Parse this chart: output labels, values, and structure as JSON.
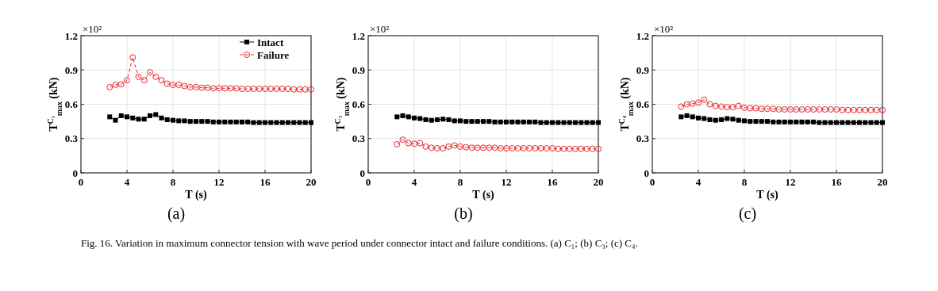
{
  "chart_data": [
    {
      "type": "line",
      "xlabel": "T (s)",
      "ylabel": "T$^{C₁}$$_{max}$ (kN)",
      "annotations": [
        "×10²",
        "(a)",
        "Fig. 16. Variation in maximum connector tension with wave period under connector intact and failure conditions. (a)   C₁; (b)   C₃; (c)   C₄."
      ],
      "x": [
        2.5,
        3,
        3.5,
        4,
        4.5,
        5,
        5.5,
        6,
        6.5,
        7,
        7.5,
        8,
        8.5,
        9,
        9.5,
        10,
        10.5,
        11,
        11.5,
        12,
        12.5,
        13,
        13.5,
        14,
        14.5,
        15,
        15.5,
        16,
        16.5,
        17,
        17.5,
        18,
        18.5,
        19,
        19.5,
        20
      ],
      "series": [
        {
          "name": "Intact",
          "color": "#000000",
          "marker": "square",
          "line_style": "solid",
          "values": [
            0.49,
            0.46,
            0.5,
            0.49,
            0.48,
            0.47,
            0.47,
            0.5,
            0.51,
            0.48,
            0.465,
            0.46,
            0.455,
            0.455,
            0.45,
            0.45,
            0.45,
            0.45,
            0.445,
            0.445,
            0.445,
            0.445,
            0.445,
            0.445,
            0.445,
            0.44,
            0.44,
            0.44,
            0.44,
            0.44,
            0.44,
            0.44,
            0.44,
            0.44,
            0.44,
            0.44
          ]
        },
        {
          "name": "Failure",
          "color": "#e8262b",
          "marker": "circle",
          "line_style": "dashed",
          "values": [
            0.75,
            0.77,
            0.775,
            0.81,
            1.01,
            0.84,
            0.81,
            0.88,
            0.84,
            0.81,
            0.78,
            0.77,
            0.77,
            0.76,
            0.75,
            0.75,
            0.745,
            0.745,
            0.74,
            0.74,
            0.74,
            0.74,
            0.74,
            0.735,
            0.735,
            0.735,
            0.735,
            0.735,
            0.735,
            0.735,
            0.735,
            0.735,
            0.73,
            0.73,
            0.73,
            0.73
          ]
        }
      ],
      "xlim": [
        0,
        20
      ],
      "xticks": [
        0,
        4,
        8,
        12,
        16,
        20
      ],
      "ylim": [
        0,
        1.2
      ],
      "yticks": [
        0,
        0.3,
        0.6,
        0.9,
        1.2
      ],
      "grid": true,
      "legend": "top right"
    },
    {
      "type": "line",
      "xlabel": "T (s)",
      "ylabel": "T$^{C₃}$$_{max}$ (kN)",
      "annotations": [
        "×10²",
        "(b)"
      ],
      "x": [
        2.5,
        3,
        3.5,
        4,
        4.5,
        5,
        5.5,
        6,
        6.5,
        7,
        7.5,
        8,
        8.5,
        9,
        9.5,
        10,
        10.5,
        11,
        11.5,
        12,
        12.5,
        13,
        13.5,
        14,
        14.5,
        15,
        15.5,
        16,
        16.5,
        17,
        17.5,
        18,
        18.5,
        19,
        19.5,
        20
      ],
      "series": [
        {
          "color": "#000000",
          "marker": "square",
          "line_style": "solid",
          "values": [
            0.49,
            0.5,
            0.49,
            0.48,
            0.475,
            0.465,
            0.46,
            0.465,
            0.47,
            0.465,
            0.455,
            0.455,
            0.45,
            0.45,
            0.45,
            0.45,
            0.45,
            0.445,
            0.445,
            0.445,
            0.445,
            0.445,
            0.445,
            0.445,
            0.445,
            0.44,
            0.44,
            0.44,
            0.44,
            0.44,
            0.44,
            0.44,
            0.44,
            0.44,
            0.44,
            0.44
          ]
        },
        {
          "color": "#e8262b",
          "marker": "circle",
          "line_style": "dashed",
          "values": [
            0.25,
            0.29,
            0.26,
            0.255,
            0.26,
            0.23,
            0.22,
            0.215,
            0.215,
            0.23,
            0.24,
            0.23,
            0.225,
            0.22,
            0.22,
            0.22,
            0.22,
            0.22,
            0.215,
            0.215,
            0.215,
            0.215,
            0.215,
            0.215,
            0.215,
            0.215,
            0.215,
            0.215,
            0.21,
            0.21,
            0.21,
            0.21,
            0.21,
            0.21,
            0.21,
            0.21
          ]
        }
      ],
      "xlim": [
        0,
        20
      ],
      "xticks": [
        0,
        4,
        8,
        12,
        16,
        20
      ],
      "ylim": [
        0,
        1.2
      ],
      "yticks": [
        0,
        0.3,
        0.6,
        0.9,
        1.2
      ],
      "grid": true
    },
    {
      "type": "line",
      "xlabel": "T (s)",
      "ylabel": "T$^{C₄}$$_{max}$ (kN)",
      "annotations": [
        "×10²",
        "(c)"
      ],
      "x": [
        2.5,
        3,
        3.5,
        4,
        4.5,
        5,
        5.5,
        6,
        6.5,
        7,
        7.5,
        8,
        8.5,
        9,
        9.5,
        10,
        10.5,
        11,
        11.5,
        12,
        12.5,
        13,
        13.5,
        14,
        14.5,
        15,
        15.5,
        16,
        16.5,
        17,
        17.5,
        18,
        18.5,
        19,
        19.5,
        20
      ],
      "series": [
        {
          "color": "#000000",
          "marker": "square",
          "line_style": "solid",
          "values": [
            0.49,
            0.5,
            0.49,
            0.48,
            0.475,
            0.465,
            0.46,
            0.465,
            0.475,
            0.47,
            0.46,
            0.455,
            0.45,
            0.45,
            0.45,
            0.45,
            0.445,
            0.445,
            0.445,
            0.445,
            0.445,
            0.445,
            0.445,
            0.445,
            0.44,
            0.44,
            0.44,
            0.44,
            0.44,
            0.44,
            0.44,
            0.44,
            0.44,
            0.44,
            0.44,
            0.44
          ]
        },
        {
          "color": "#e8262b",
          "marker": "circle",
          "line_style": "dashed",
          "values": [
            0.58,
            0.6,
            0.605,
            0.615,
            0.64,
            0.6,
            0.585,
            0.58,
            0.575,
            0.575,
            0.585,
            0.57,
            0.565,
            0.565,
            0.56,
            0.56,
            0.56,
            0.555,
            0.555,
            0.555,
            0.555,
            0.555,
            0.555,
            0.555,
            0.555,
            0.555,
            0.555,
            0.555,
            0.55,
            0.55,
            0.55,
            0.55,
            0.55,
            0.55,
            0.55,
            0.55
          ]
        }
      ],
      "xlim": [
        0,
        20
      ],
      "xticks": [
        0,
        4,
        8,
        12,
        16,
        20
      ],
      "ylim": [
        0,
        1.2
      ],
      "yticks": [
        0,
        0.3,
        0.6,
        0.9,
        1.2
      ],
      "grid": true
    }
  ]
}
